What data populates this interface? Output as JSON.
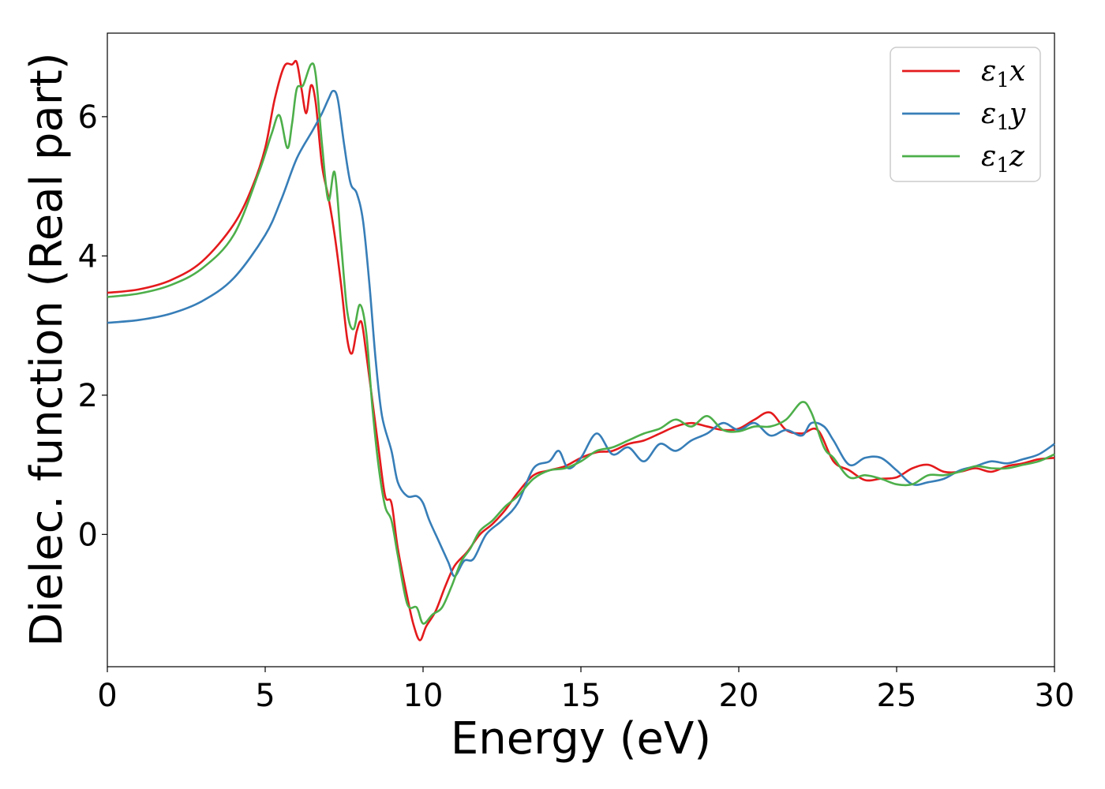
{
  "chart_data": {
    "type": "line",
    "title": "",
    "xlabel": "Energy (eV)",
    "ylabel": "Dielec. function (Real part)",
    "xlim": [
      0,
      30
    ],
    "ylim": [
      -1.9,
      7.2
    ],
    "xticks": [
      0,
      5,
      10,
      15,
      20,
      25,
      30
    ],
    "yticks": [
      0,
      2,
      4,
      6
    ],
    "grid": false,
    "legend_position": "top-right",
    "series": [
      {
        "name": "ε1x",
        "legend": {
          "sym": "ε",
          "sub": "1",
          "axis": "x"
        },
        "color": "#e41a1c",
        "points": [
          [
            0,
            3.47
          ],
          [
            1,
            3.52
          ],
          [
            2,
            3.65
          ],
          [
            3,
            3.92
          ],
          [
            4,
            4.45
          ],
          [
            4.6,
            5.0
          ],
          [
            5,
            5.55
          ],
          [
            5.3,
            6.25
          ],
          [
            5.6,
            6.72
          ],
          [
            5.85,
            6.75
          ],
          [
            6.0,
            6.78
          ],
          [
            6.15,
            6.4
          ],
          [
            6.3,
            6.05
          ],
          [
            6.45,
            6.45
          ],
          [
            6.6,
            6.2
          ],
          [
            6.8,
            5.3
          ],
          [
            7.0,
            4.85
          ],
          [
            7.2,
            4.3
          ],
          [
            7.4,
            3.6
          ],
          [
            7.6,
            2.8
          ],
          [
            7.75,
            2.6
          ],
          [
            7.9,
            2.92
          ],
          [
            8.05,
            3.05
          ],
          [
            8.2,
            2.6
          ],
          [
            8.4,
            1.9
          ],
          [
            8.6,
            1.2
          ],
          [
            8.8,
            0.55
          ],
          [
            9.0,
            0.45
          ],
          [
            9.2,
            -0.2
          ],
          [
            9.5,
            -0.9
          ],
          [
            9.7,
            -1.3
          ],
          [
            9.9,
            -1.52
          ],
          [
            10.1,
            -1.32
          ],
          [
            10.4,
            -1.1
          ],
          [
            10.7,
            -0.75
          ],
          [
            11.0,
            -0.45
          ],
          [
            11.4,
            -0.25
          ],
          [
            11.8,
            0.0
          ],
          [
            12.2,
            0.15
          ],
          [
            12.6,
            0.35
          ],
          [
            13.0,
            0.6
          ],
          [
            13.5,
            0.85
          ],
          [
            14.0,
            0.92
          ],
          [
            14.5,
            0.98
          ],
          [
            15.0,
            1.1
          ],
          [
            15.5,
            1.18
          ],
          [
            16.0,
            1.2
          ],
          [
            16.5,
            1.3
          ],
          [
            17.0,
            1.35
          ],
          [
            17.5,
            1.45
          ],
          [
            18.0,
            1.55
          ],
          [
            18.5,
            1.6
          ],
          [
            19.0,
            1.55
          ],
          [
            19.5,
            1.5
          ],
          [
            20.0,
            1.52
          ],
          [
            20.5,
            1.65
          ],
          [
            21.0,
            1.75
          ],
          [
            21.5,
            1.5
          ],
          [
            22.0,
            1.45
          ],
          [
            22.5,
            1.5
          ],
          [
            23.0,
            1.05
          ],
          [
            23.5,
            0.92
          ],
          [
            24.0,
            0.78
          ],
          [
            24.5,
            0.8
          ],
          [
            25.0,
            0.82
          ],
          [
            25.5,
            0.95
          ],
          [
            26.0,
            1.0
          ],
          [
            26.5,
            0.9
          ],
          [
            27.0,
            0.9
          ],
          [
            27.5,
            0.95
          ],
          [
            28.0,
            0.9
          ],
          [
            28.5,
            0.98
          ],
          [
            29.0,
            1.02
          ],
          [
            29.5,
            1.08
          ],
          [
            30,
            1.1
          ]
        ]
      },
      {
        "name": "ε1y",
        "legend": {
          "sym": "ε",
          "sub": "1",
          "axis": "y"
        },
        "color": "#377eb8",
        "points": [
          [
            0,
            3.04
          ],
          [
            1,
            3.08
          ],
          [
            2,
            3.17
          ],
          [
            3,
            3.35
          ],
          [
            4,
            3.68
          ],
          [
            5,
            4.3
          ],
          [
            5.5,
            4.8
          ],
          [
            6.0,
            5.4
          ],
          [
            6.5,
            5.8
          ],
          [
            6.8,
            6.05
          ],
          [
            7.0,
            6.25
          ],
          [
            7.15,
            6.37
          ],
          [
            7.3,
            6.25
          ],
          [
            7.5,
            5.6
          ],
          [
            7.7,
            5.05
          ],
          [
            7.9,
            4.9
          ],
          [
            8.1,
            4.5
          ],
          [
            8.3,
            3.6
          ],
          [
            8.5,
            2.5
          ],
          [
            8.7,
            1.7
          ],
          [
            9.0,
            1.2
          ],
          [
            9.2,
            0.75
          ],
          [
            9.5,
            0.55
          ],
          [
            9.8,
            0.55
          ],
          [
            10.0,
            0.45
          ],
          [
            10.2,
            0.2
          ],
          [
            10.5,
            -0.1
          ],
          [
            10.8,
            -0.4
          ],
          [
            11.0,
            -0.6
          ],
          [
            11.3,
            -0.38
          ],
          [
            11.6,
            -0.35
          ],
          [
            12.0,
            0.0
          ],
          [
            12.5,
            0.2
          ],
          [
            13.0,
            0.45
          ],
          [
            13.5,
            0.95
          ],
          [
            14.0,
            1.05
          ],
          [
            14.3,
            1.2
          ],
          [
            14.6,
            0.95
          ],
          [
            15.0,
            1.1
          ],
          [
            15.5,
            1.45
          ],
          [
            16.0,
            1.15
          ],
          [
            16.5,
            1.25
          ],
          [
            17.0,
            1.05
          ],
          [
            17.5,
            1.3
          ],
          [
            18.0,
            1.2
          ],
          [
            18.5,
            1.35
          ],
          [
            19.0,
            1.45
          ],
          [
            19.5,
            1.6
          ],
          [
            20.0,
            1.5
          ],
          [
            20.5,
            1.6
          ],
          [
            21.0,
            1.42
          ],
          [
            21.5,
            1.5
          ],
          [
            22.0,
            1.42
          ],
          [
            22.3,
            1.6
          ],
          [
            22.7,
            1.55
          ],
          [
            23.0,
            1.35
          ],
          [
            23.5,
            1.0
          ],
          [
            24.0,
            1.1
          ],
          [
            24.5,
            1.1
          ],
          [
            25.0,
            0.92
          ],
          [
            25.5,
            0.72
          ],
          [
            26.0,
            0.75
          ],
          [
            26.5,
            0.8
          ],
          [
            27.0,
            0.92
          ],
          [
            27.5,
            0.98
          ],
          [
            28.0,
            1.05
          ],
          [
            28.5,
            1.02
          ],
          [
            29.0,
            1.08
          ],
          [
            29.5,
            1.15
          ],
          [
            30,
            1.3
          ]
        ]
      },
      {
        "name": "ε1z",
        "legend": {
          "sym": "ε",
          "sub": "1",
          "axis": "z"
        },
        "color": "#4daf4a",
        "points": [
          [
            0,
            3.41
          ],
          [
            1,
            3.46
          ],
          [
            2,
            3.58
          ],
          [
            3,
            3.82
          ],
          [
            4,
            4.3
          ],
          [
            4.8,
            5.2
          ],
          [
            5.2,
            5.75
          ],
          [
            5.45,
            6.02
          ],
          [
            5.7,
            5.55
          ],
          [
            5.85,
            5.9
          ],
          [
            6.0,
            6.4
          ],
          [
            6.2,
            6.45
          ],
          [
            6.45,
            6.75
          ],
          [
            6.6,
            6.6
          ],
          [
            6.8,
            5.6
          ],
          [
            7.0,
            4.8
          ],
          [
            7.2,
            5.2
          ],
          [
            7.4,
            4.2
          ],
          [
            7.6,
            3.2
          ],
          [
            7.8,
            2.95
          ],
          [
            8.0,
            3.3
          ],
          [
            8.2,
            2.9
          ],
          [
            8.4,
            1.8
          ],
          [
            8.6,
            0.95
          ],
          [
            8.8,
            0.4
          ],
          [
            9.0,
            0.2
          ],
          [
            9.2,
            -0.3
          ],
          [
            9.5,
            -1.0
          ],
          [
            9.8,
            -1.05
          ],
          [
            10.0,
            -1.28
          ],
          [
            10.3,
            -1.15
          ],
          [
            10.6,
            -1.05
          ],
          [
            10.9,
            -0.75
          ],
          [
            11.2,
            -0.4
          ],
          [
            11.5,
            -0.2
          ],
          [
            11.8,
            0.05
          ],
          [
            12.2,
            0.2
          ],
          [
            12.6,
            0.4
          ],
          [
            13.0,
            0.55
          ],
          [
            13.5,
            0.8
          ],
          [
            14.0,
            0.92
          ],
          [
            14.5,
            0.95
          ],
          [
            15.0,
            1.05
          ],
          [
            15.5,
            1.2
          ],
          [
            16.0,
            1.25
          ],
          [
            16.5,
            1.35
          ],
          [
            17.0,
            1.45
          ],
          [
            17.5,
            1.52
          ],
          [
            18.0,
            1.65
          ],
          [
            18.5,
            1.55
          ],
          [
            19.0,
            1.7
          ],
          [
            19.5,
            1.5
          ],
          [
            20.0,
            1.48
          ],
          [
            20.5,
            1.55
          ],
          [
            21.0,
            1.55
          ],
          [
            21.5,
            1.65
          ],
          [
            22.0,
            1.9
          ],
          [
            22.3,
            1.75
          ],
          [
            22.7,
            1.25
          ],
          [
            23.0,
            1.1
          ],
          [
            23.5,
            0.82
          ],
          [
            24.0,
            0.85
          ],
          [
            24.5,
            0.8
          ],
          [
            25.0,
            0.72
          ],
          [
            25.5,
            0.72
          ],
          [
            26.0,
            0.85
          ],
          [
            26.5,
            0.85
          ],
          [
            27.0,
            0.9
          ],
          [
            27.5,
            0.98
          ],
          [
            28.0,
            0.95
          ],
          [
            28.5,
            0.95
          ],
          [
            29.0,
            1.0
          ],
          [
            29.5,
            1.05
          ],
          [
            30,
            1.15
          ]
        ]
      }
    ]
  }
}
